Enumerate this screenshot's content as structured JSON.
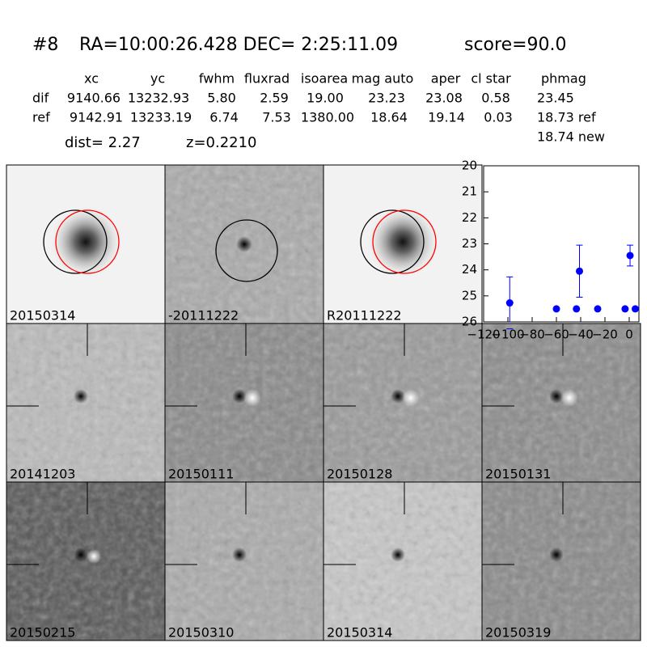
{
  "header": {
    "id": "#8",
    "coords": "RA=10:00:26.428 DEC= 2:25:11.09",
    "score": "score=90.0"
  },
  "table": {
    "columns": [
      "xc",
      "yc",
      "fwhm",
      "fluxrad",
      "isoarea",
      "mag auto",
      "aper",
      "cl star",
      "phmag"
    ],
    "rows": [
      [
        "dif",
        "9140.66",
        "13232.93",
        "5.80",
        "2.59",
        "19.00",
        "23.23",
        "23.08",
        "0.58",
        "23.45"
      ],
      [
        "ref",
        "9142.91",
        "13233.19",
        "6.74",
        "7.53",
        "1380.00",
        "18.64",
        "19.14",
        "0.03",
        "18.73 ref"
      ]
    ],
    "extra": "18.74 new",
    "dist": "dist=  2.27",
    "z": "z=0.2210"
  },
  "panels": [
    {
      "label": "20150314"
    },
    {
      "label": "-20111222"
    },
    {
      "label": "R20111222"
    },
    {
      "label": "20141203"
    },
    {
      "label": "20150111"
    },
    {
      "label": "20150128"
    },
    {
      "label": "20150131"
    },
    {
      "label": "20150215"
    },
    {
      "label": "20150310"
    },
    {
      "label": "20150314",
      "color": "#ff0000"
    },
    {
      "label": "20150319"
    }
  ],
  "chart_data": {
    "type": "scatter",
    "x": [
      -98.5,
      -60,
      -43.5,
      -41,
      -26,
      -3.4,
      0.7,
      5
    ],
    "series": [
      {
        "color": "#0000ff",
        "values": [
          25.27,
          25.5,
          25.5,
          24.05,
          25.5,
          25.5,
          23.45,
          25.5
        ],
        "errors": [
          1.0,
          0,
          0,
          1.0,
          0,
          0,
          0.4,
          0
        ]
      }
    ],
    "xlim": [
      -120,
      8
    ],
    "ylim": [
      26,
      20
    ],
    "xticks": [
      {
        "value": -120,
        "label": "−120"
      },
      {
        "value": -100,
        "label": "−100"
      },
      {
        "value": -80,
        "label": "−80"
      },
      {
        "value": -60,
        "label": "−60"
      },
      {
        "value": -40,
        "label": "−40"
      },
      {
        "value": -20,
        "label": "−20"
      },
      0
    ],
    "yticks": [
      20,
      21,
      22,
      23,
      24,
      25,
      26
    ]
  }
}
